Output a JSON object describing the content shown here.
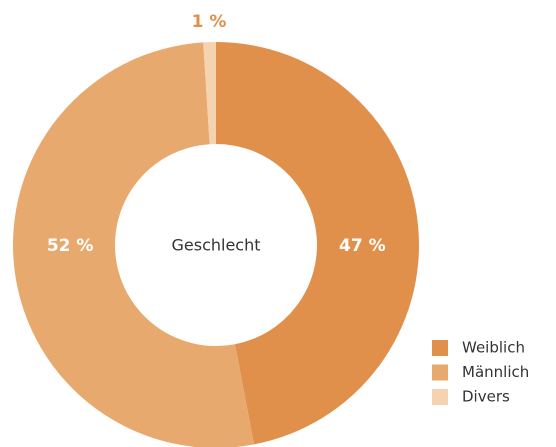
{
  "chart_data": {
    "type": "donut",
    "center_label": "Geschlecht",
    "categories": [
      "Weiblich",
      "Männlich",
      "Divers"
    ],
    "values": [
      47,
      52,
      1
    ],
    "value_labels": [
      "47 %",
      "52 %",
      "1 %"
    ],
    "colors": [
      "#e0904a",
      "#e8a96e",
      "#f5d3b0"
    ],
    "legend": "bottom-right"
  }
}
